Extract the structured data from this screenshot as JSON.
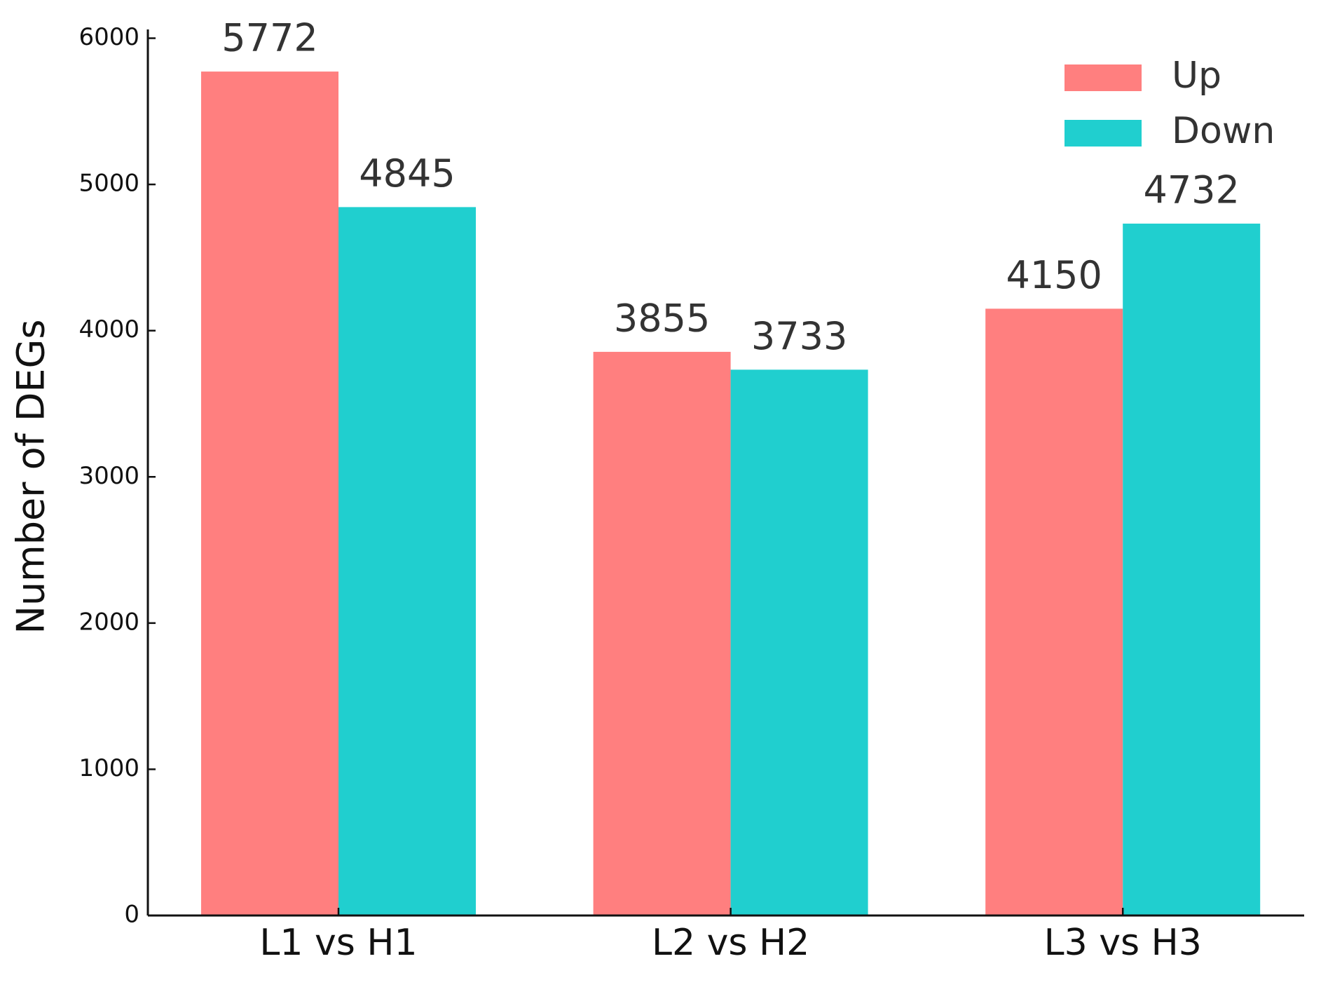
{
  "chart_data": {
    "type": "bar",
    "ylabel": "Number of DEGs",
    "categories": [
      "L1 vs H1",
      "L2 vs H2",
      "L3 vs H3"
    ],
    "series": [
      {
        "name": "Up",
        "color": "#ff7f7f",
        "values": [
          5772,
          3855,
          4150
        ]
      },
      {
        "name": "Down",
        "color": "#20cfcf",
        "values": [
          4845,
          3733,
          4732
        ]
      }
    ],
    "ylim": [
      0,
      6060
    ],
    "yticks": [
      0,
      1000,
      2000,
      3000,
      4000,
      5000,
      6000
    ],
    "grid": false,
    "legend": "upper right"
  }
}
